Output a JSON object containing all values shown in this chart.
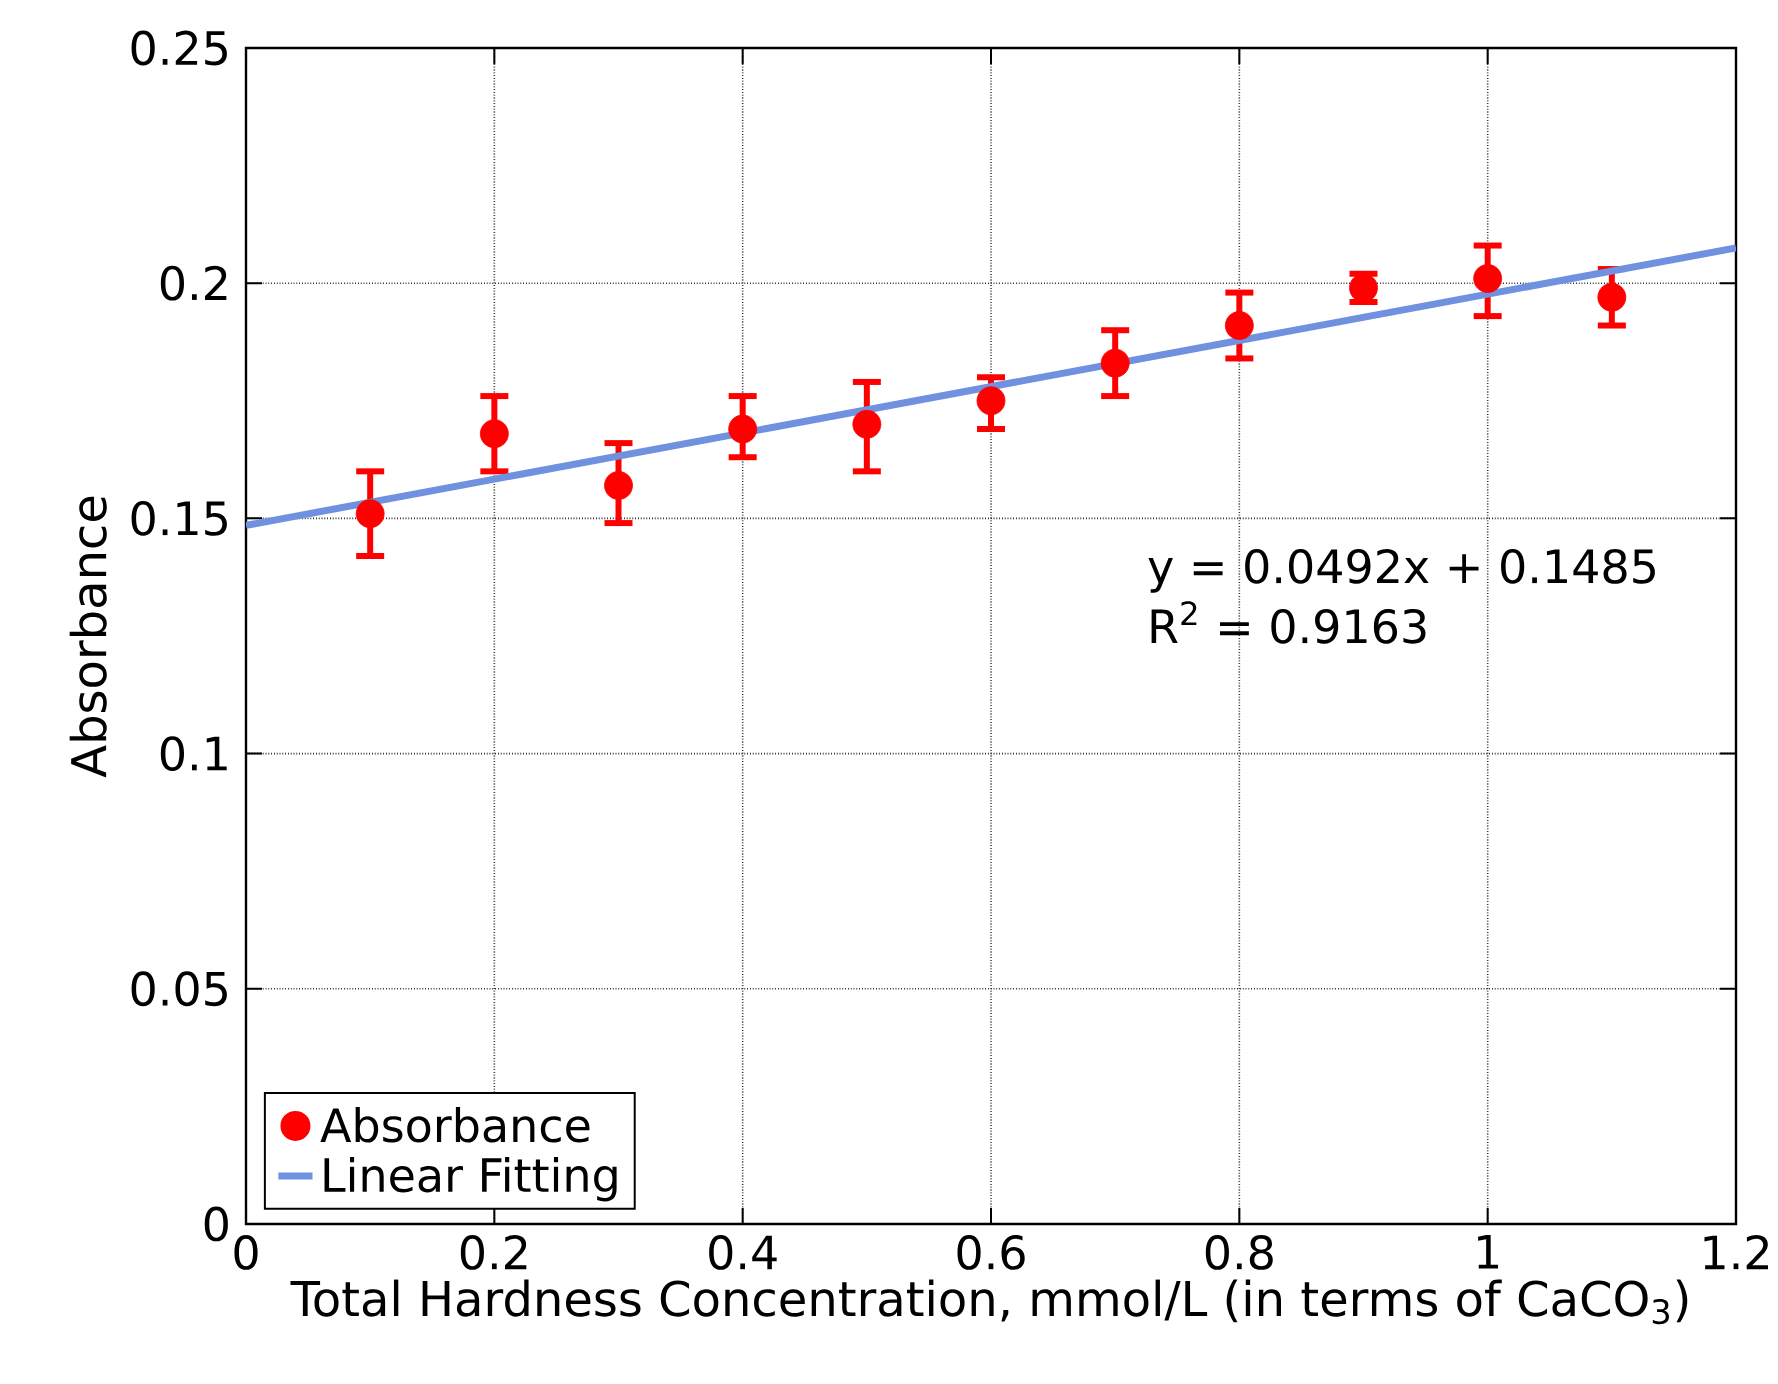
{
  "chart_data": {
    "type": "scatter",
    "xlabel": "Total Hardness Concentration, mmol/L (in terms of CaCO$_{3}$)",
    "ylabel": "Absorbance",
    "x": [
      0.1,
      0.2,
      0.3,
      0.4,
      0.5,
      0.6,
      0.7,
      0.8,
      0.9,
      1.0,
      1.1
    ],
    "series": [
      {
        "name": "Absorbance",
        "marker": "circle",
        "color": "#ff0000",
        "values": [
          0.151,
          0.168,
          0.157,
          0.169,
          0.17,
          0.175,
          0.183,
          0.191,
          0.199,
          0.201,
          0.197
        ],
        "errors": [
          [
            0.142,
            0.16
          ],
          [
            0.16,
            0.176
          ],
          [
            0.149,
            0.166
          ],
          [
            0.163,
            0.176
          ],
          [
            0.16,
            0.179
          ],
          [
            0.169,
            0.18
          ],
          [
            0.176,
            0.19
          ],
          [
            0.184,
            0.198
          ],
          [
            0.196,
            0.202
          ],
          [
            0.193,
            0.208
          ],
          [
            0.191,
            0.203
          ]
        ]
      },
      {
        "name": "Linear Fitting",
        "type": "line",
        "marker": "none",
        "color": "#7090e0",
        "x": [
          0,
          1.2
        ],
        "values": [
          0.1485,
          0.2075
        ]
      }
    ],
    "annotations": [
      "y = 0.0492x + 0.1485",
      "R$^{2}$ = 0.9163"
    ],
    "xlim": [
      0,
      1.2
    ],
    "ylim": [
      0,
      0.25
    ],
    "xticks": [
      0,
      0.2,
      0.4,
      0.6,
      0.8,
      1,
      1.2
    ],
    "yticks": [
      0,
      0.05,
      0.1,
      0.15,
      0.2,
      0.25
    ],
    "grid": true,
    "legend": "bottom left",
    "line_style": "solid"
  }
}
